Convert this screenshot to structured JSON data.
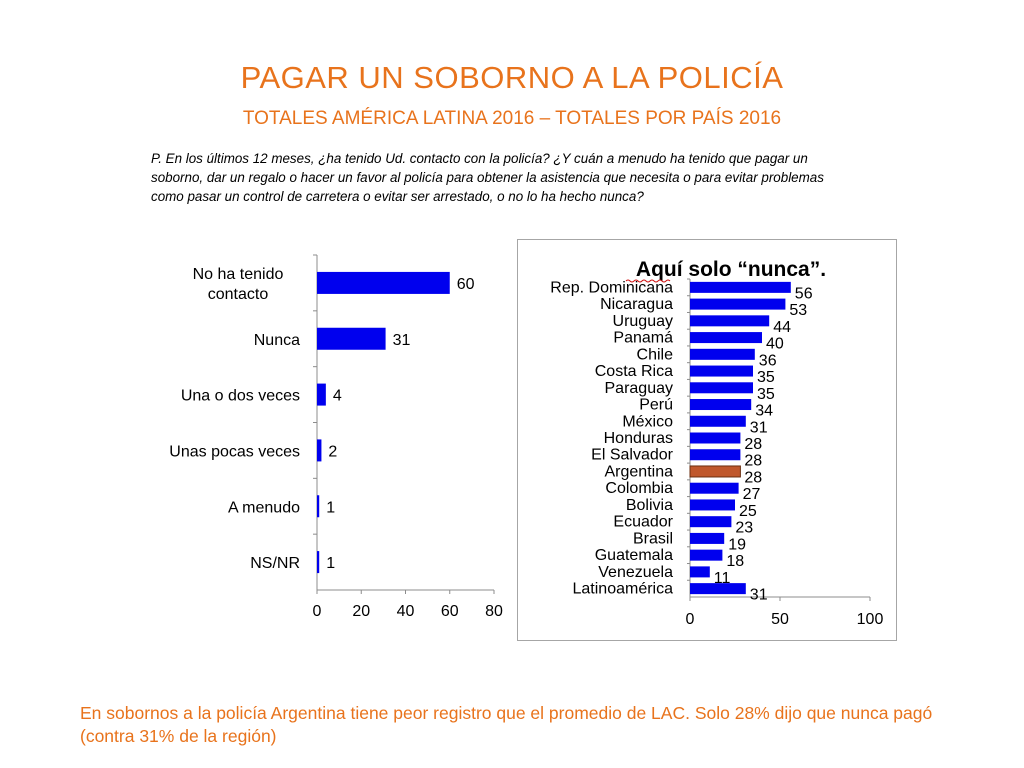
{
  "title": "PAGAR UN SOBORNO A LA POLICÍA",
  "subtitle": "TOTALES AMÉRICA LATINA 2016 – TOTALES POR PAÍS 2016",
  "question": "P. En los últimos 12 meses, ¿ha tenido Ud. contacto con la policía? ¿Y cuán a menudo ha tenido que pagar un soborno, dar un regalo o hacer un favor al policía para obtener la asistencia que necesita o para evitar problemas como pasar un control de carretera o evitar ser arrestado, o no lo ha hecho nunca?",
  "footer": "En sobornos a la policía Argentina tiene peor registro que el promedio de LAC. Solo 28% dijo que nunca pagó (contra 31% de la región)",
  "colors": {
    "accent": "#e8731c",
    "bar": "#0000ee",
    "highlight": "#c0582c"
  },
  "chart_data": [
    {
      "type": "bar",
      "orientation": "horizontal",
      "title": "",
      "categories": [
        [
          "No ha tenido",
          "contacto"
        ],
        [
          "Nunca"
        ],
        [
          "Una o dos veces"
        ],
        [
          "Unas pocas veces"
        ],
        [
          "A menudo"
        ],
        [
          "NS/NR"
        ]
      ],
      "values": [
        60,
        31,
        4,
        2,
        1,
        1
      ],
      "xlim": [
        0,
        80
      ],
      "xticks": [
        0,
        20,
        40,
        60,
        80
      ],
      "grid": false
    },
    {
      "type": "bar",
      "orientation": "horizontal",
      "title": "Aquí solo “nunca”.",
      "categories": [
        "Rep. Dominicana",
        "Nicaragua",
        "Uruguay",
        "Panamá",
        "Chile",
        "Costa Rica",
        "Paraguay",
        "Perú",
        "México",
        "Honduras",
        "El Salvador",
        "Argentina",
        "Colombia",
        "Bolivia",
        "Ecuador",
        "Brasil",
        "Guatemala",
        "Venezuela",
        "Latinoamérica"
      ],
      "values": [
        56,
        53,
        44,
        40,
        36,
        35,
        35,
        34,
        31,
        28,
        28,
        28,
        27,
        25,
        23,
        19,
        18,
        11,
        31
      ],
      "highlight": "Argentina",
      "xlim": [
        0,
        100
      ],
      "xticks": [
        0,
        50,
        100
      ],
      "grid": false
    }
  ]
}
